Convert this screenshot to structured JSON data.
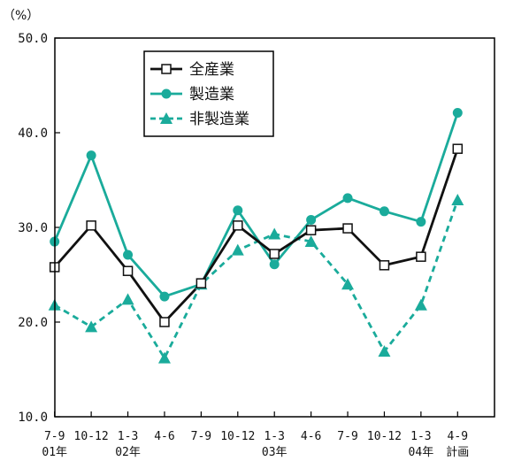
{
  "chart_data": {
    "type": "line",
    "ylabel": "（%）",
    "ylim": [
      10,
      50
    ],
    "yticks": [
      "10.0",
      "20.0",
      "30.0",
      "40.0",
      "50.0"
    ],
    "categories": [
      "7-9",
      "10-12",
      "1-3",
      "4-6",
      "7-9",
      "10-12",
      "1-3",
      "4-6",
      "7-9",
      "10-12",
      "1-3",
      "4-9"
    ],
    "year_labels": [
      "01年",
      "",
      "02年",
      "",
      "",
      "",
      "03年",
      "",
      "",
      "",
      "04年",
      "計画"
    ],
    "legend_position": "top-left",
    "grid": false,
    "series": [
      {
        "name": "全産業",
        "color": "#111111",
        "marker": "square",
        "dash": "solid",
        "values": [
          25.8,
          30.2,
          25.4,
          20.0,
          24.1,
          30.2,
          27.2,
          29.7,
          29.9,
          26.0,
          26.9,
          38.3
        ]
      },
      {
        "name": "製造業",
        "color": "#1aab9b",
        "marker": "circle",
        "dash": "solid",
        "values": [
          28.5,
          37.6,
          27.1,
          22.7,
          24.0,
          31.8,
          26.1,
          30.8,
          33.1,
          31.7,
          30.6,
          42.1
        ]
      },
      {
        "name": "非製造業",
        "color": "#1aab9b",
        "marker": "triangle",
        "dash": "dashed",
        "values": [
          21.8,
          19.5,
          22.4,
          16.2,
          24.0,
          27.6,
          29.3,
          28.5,
          24.0,
          16.9,
          21.8,
          32.9
        ]
      }
    ]
  }
}
